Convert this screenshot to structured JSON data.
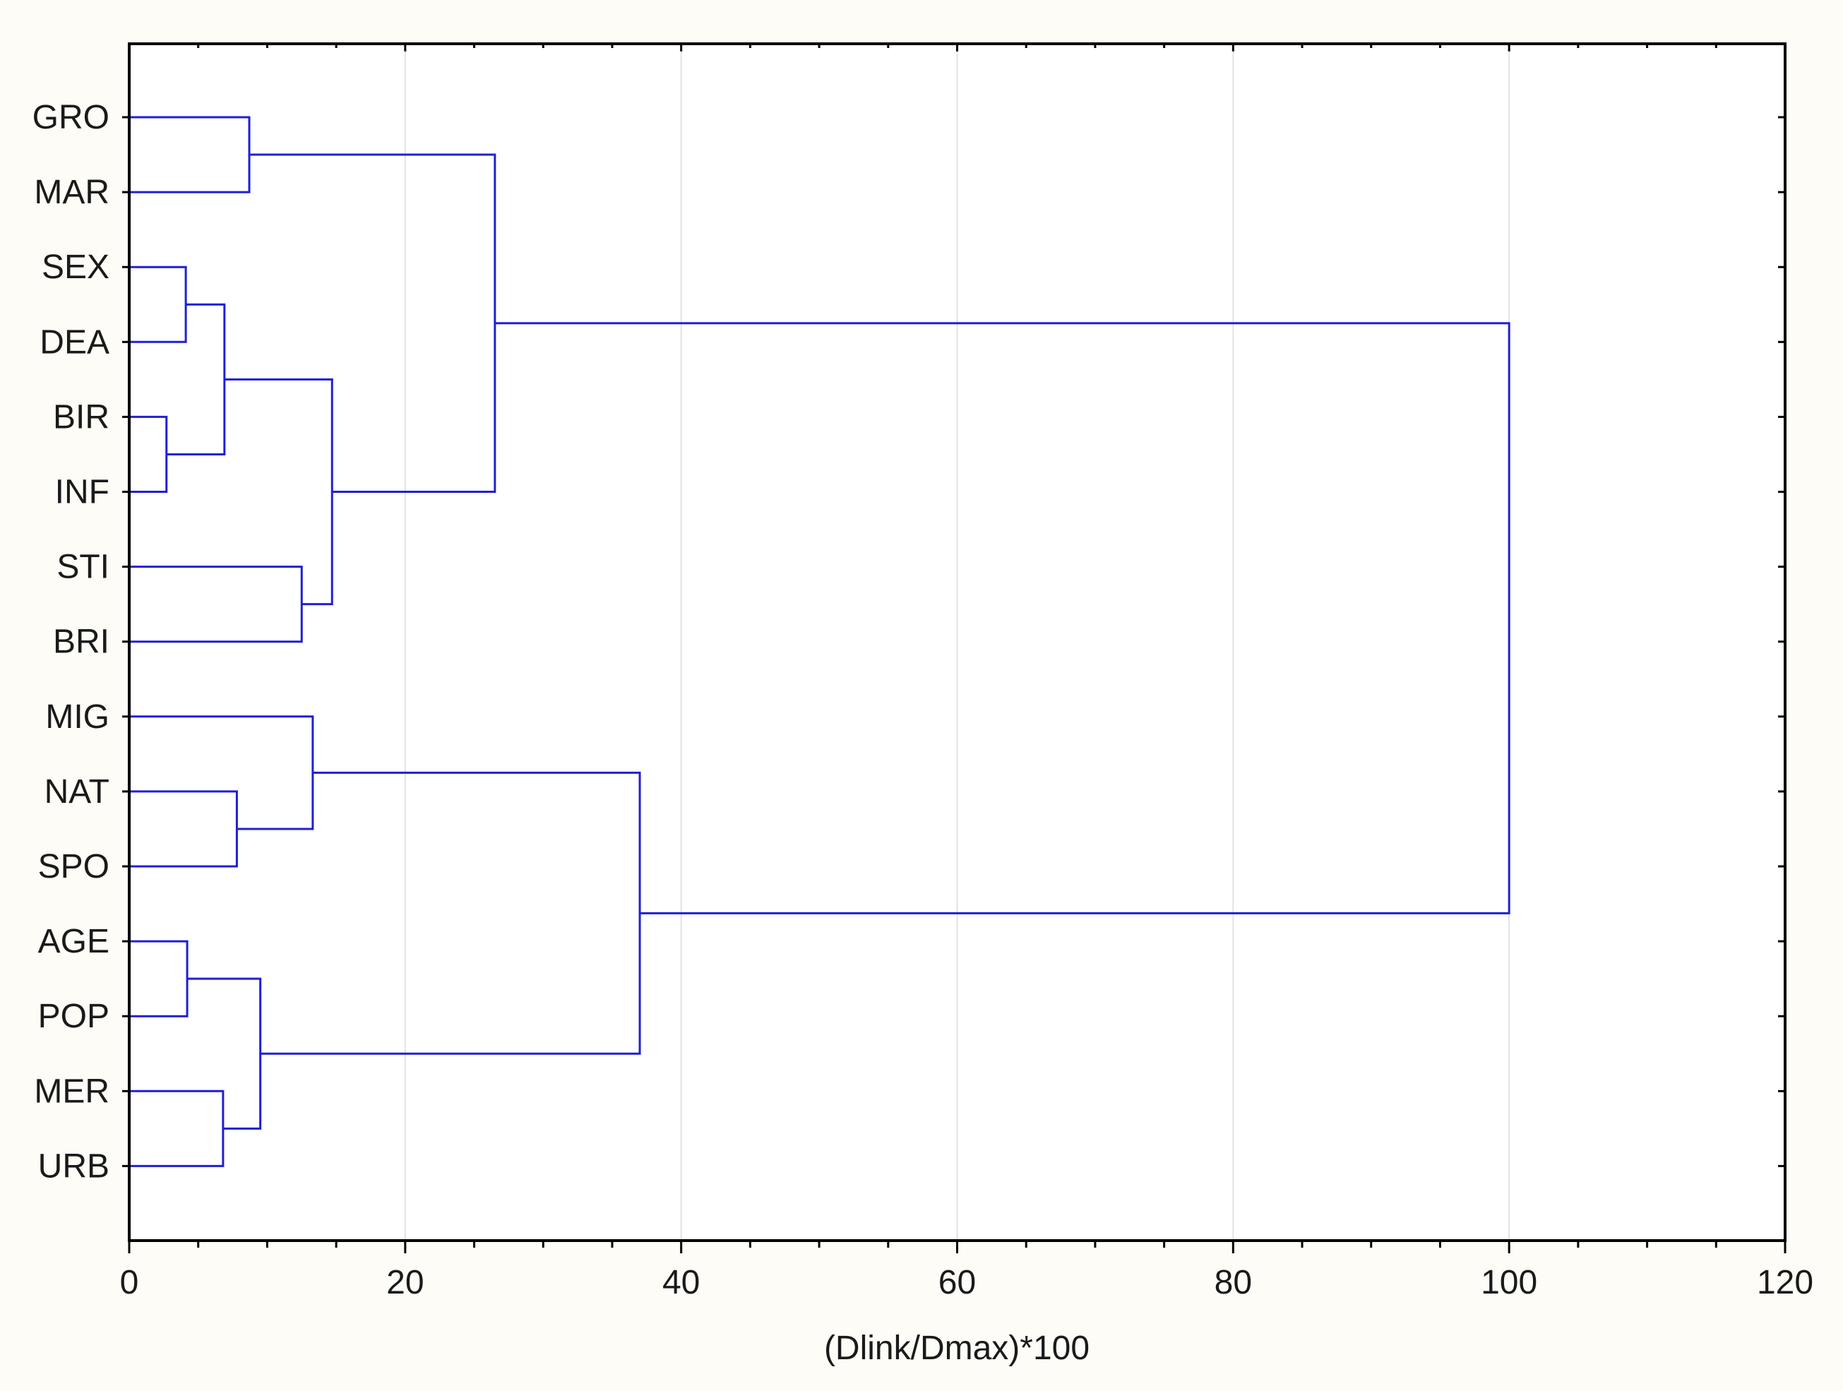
{
  "chart_data": {
    "type": "dendrogram",
    "orientation": "horizontal",
    "xlabel": "(Dlink/Dmax)*100",
    "xlim": [
      0,
      120
    ],
    "x_ticks": [
      0,
      20,
      40,
      60,
      80,
      100,
      120
    ],
    "x_tick_labels": [
      "0",
      "20",
      "40",
      "60",
      "80",
      "100",
      "120"
    ],
    "grid": "vertical major gridlines",
    "line_color": "#1f1fd6",
    "leaves": [
      "GRO",
      "MAR",
      "SEX",
      "DEA",
      "BIR",
      "INF",
      "STI",
      "BRI",
      "MIG",
      "NAT",
      "SPO",
      "AGE",
      "POP",
      "MER",
      "URB"
    ],
    "merges": [
      {
        "left": "BIR",
        "right": "INF",
        "distance": 2.7
      },
      {
        "left": "SEX",
        "right": "DEA",
        "distance": 4.1
      },
      {
        "left": "AGE",
        "right": "POP",
        "distance": 4.2
      },
      {
        "left": "MER",
        "right": "URB",
        "distance": 6.8
      },
      {
        "left": "SEX|DEA",
        "right": "BIR|INF",
        "distance": 6.9
      },
      {
        "left": "NAT",
        "right": "SPO",
        "distance": 7.8
      },
      {
        "left": "GRO",
        "right": "MAR",
        "distance": 8.7
      },
      {
        "left": "AGE|POP",
        "right": "MER|URB",
        "distance": 9.5
      },
      {
        "left": "STI",
        "right": "BRI",
        "distance": 12.5
      },
      {
        "left": "MIG",
        "right": "NAT|SPO",
        "distance": 13.3
      },
      {
        "left": "SEX|DEA|BIR|INF",
        "right": "STI|BRI",
        "distance": 14.7
      },
      {
        "left": "GRO|MAR",
        "right": "SEX|DEA|BIR|INF|STI|BRI",
        "distance": 26.5
      },
      {
        "left": "MIG|NAT|SPO",
        "right": "AGE|POP|MER|URB",
        "distance": 37.0
      },
      {
        "left": "GRO|MAR|SEX|DEA|BIR|INF|STI|BRI",
        "right": "MIG|NAT|SPO|AGE|POP|MER|URB",
        "distance": 100.0
      }
    ]
  }
}
